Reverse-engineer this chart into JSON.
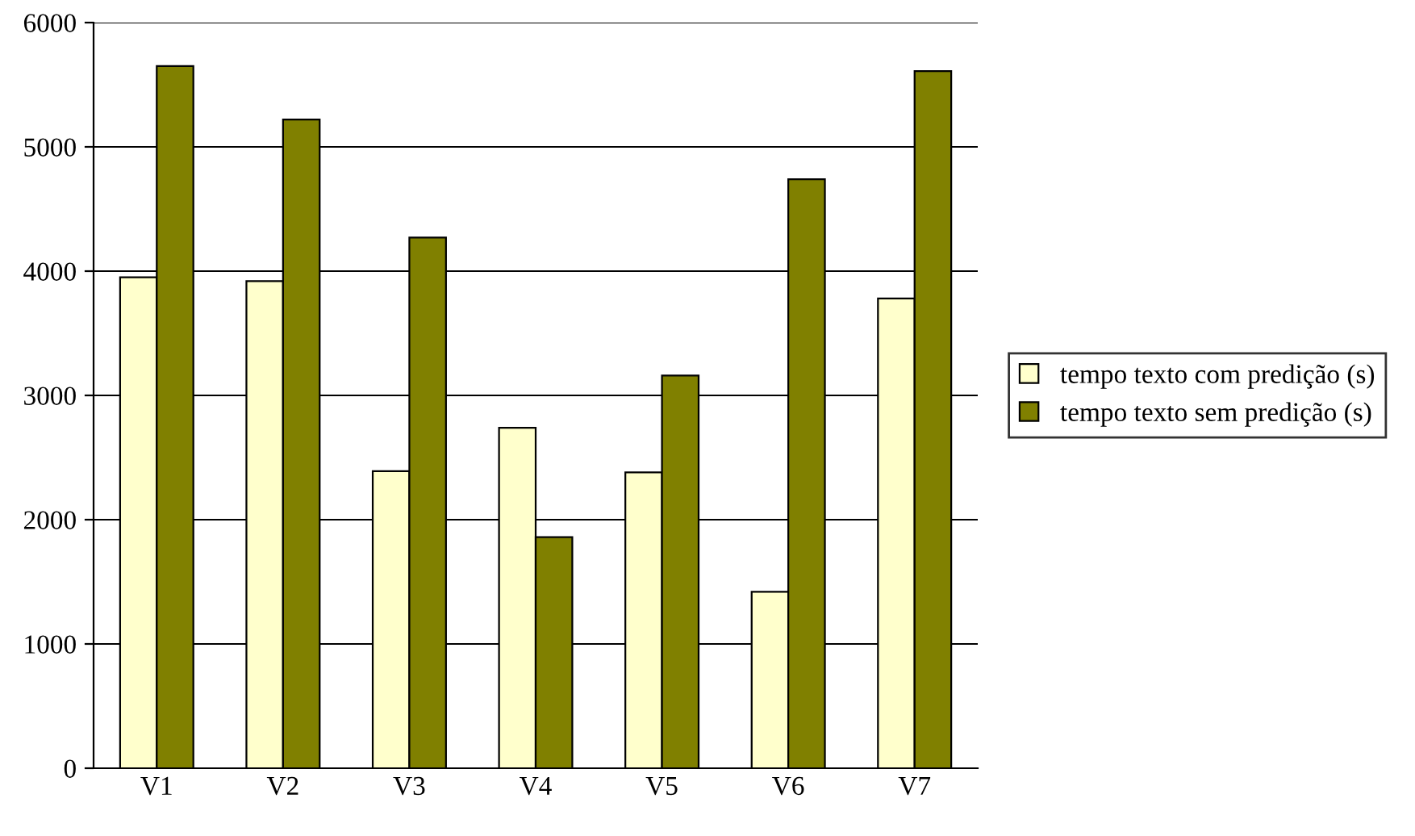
{
  "chart_data": {
    "type": "bar",
    "categories": [
      "V1",
      "V2",
      "V3",
      "V4",
      "V5",
      "V6",
      "V7"
    ],
    "series": [
      {
        "name": "tempo texto com predição (s)",
        "color": "#ffffcc",
        "values": [
          3950,
          3920,
          2390,
          2740,
          2380,
          1420,
          3780
        ]
      },
      {
        "name": "tempo texto sem predição (s)",
        "color": "#808000",
        "values": [
          5650,
          5220,
          4270,
          1860,
          3160,
          4740,
          5610
        ]
      }
    ],
    "ylim": [
      0,
      6000
    ],
    "yticks": [
      0,
      1000,
      2000,
      3000,
      4000,
      5000,
      6000
    ],
    "grid": "y",
    "legend": "right"
  }
}
